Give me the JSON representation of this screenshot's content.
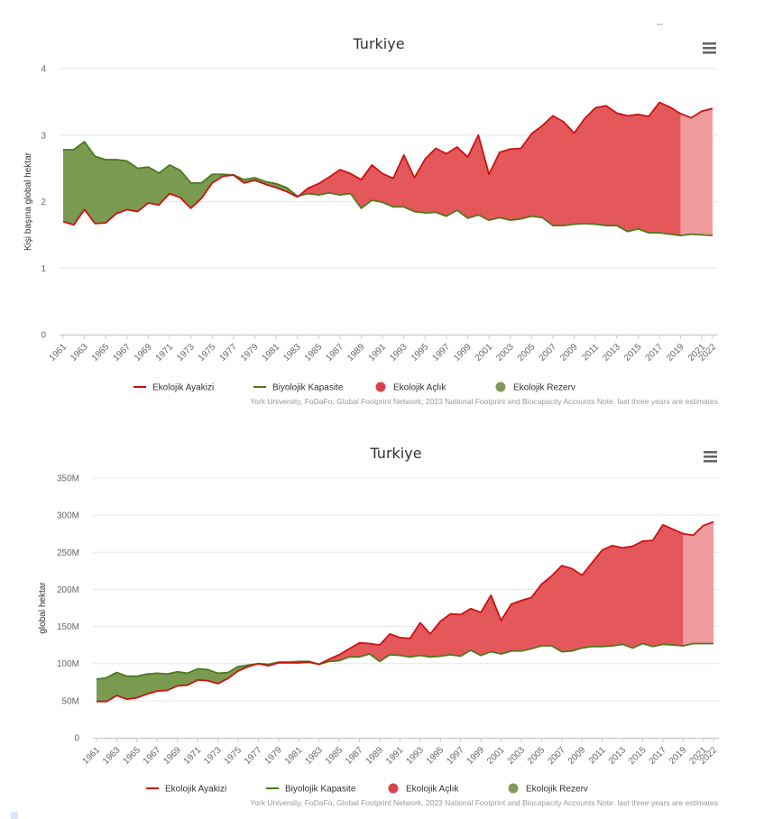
{
  "corner_mark": "--",
  "colors": {
    "footprint_line": "#cc1111",
    "biocap_line": "#4d7a1f",
    "deficit_fill": "#e4575b",
    "deficit_fill_estimate": "#ef9b9d",
    "reserve_fill": "#7a9b4f",
    "legend_deficit_dot": "#d8424b",
    "legend_reserve_dot": "#86995a"
  },
  "chart_data": [
    {
      "type": "area",
      "title": "Turkiye",
      "xlabel": "",
      "ylabel": "Kişi başına global hektar",
      "ylim": [
        0,
        4
      ],
      "yticks": [
        "0",
        "1",
        "2",
        "3",
        "4"
      ],
      "ytick_values": [
        0,
        1,
        2,
        3,
        4
      ],
      "xticks": [
        "1961",
        "1963",
        "1965",
        "1967",
        "1969",
        "1971",
        "1973",
        "1975",
        "1977",
        "1979",
        "1981",
        "1983",
        "1985",
        "1987",
        "1989",
        "1991",
        "1993",
        "1995",
        "1997",
        "1999",
        "2001",
        "2003",
        "2005",
        "2007",
        "2009",
        "2011",
        "2013",
        "2015",
        "2017",
        "2019",
        "2021",
        "2022"
      ],
      "estimate_from_year": 2020,
      "legend": [
        "Ekolojik Ayakizi",
        "Biyolojik Kapasite",
        "Ekolojik Açlık",
        "Ekolojik Rezerv"
      ],
      "credits": "York University, FoDaFo, Global Footprint Network, 2023 National Footprint and Biocapacity Accounts Note: last three years are estimates",
      "x": [
        1961,
        1962,
        1963,
        1964,
        1965,
        1966,
        1967,
        1968,
        1969,
        1970,
        1971,
        1972,
        1973,
        1974,
        1975,
        1976,
        1977,
        1978,
        1979,
        1980,
        1981,
        1982,
        1983,
        1984,
        1985,
        1986,
        1987,
        1988,
        1989,
        1990,
        1991,
        1992,
        1993,
        1994,
        1995,
        1996,
        1997,
        1998,
        1999,
        2000,
        2001,
        2002,
        2003,
        2004,
        2005,
        2006,
        2007,
        2008,
        2009,
        2010,
        2011,
        2012,
        2013,
        2014,
        2015,
        2016,
        2017,
        2018,
        2019,
        2020,
        2021,
        2022
      ],
      "series": [
        {
          "name": "Ekolojik Ayakizi",
          "values": [
            1.7,
            1.65,
            1.88,
            1.67,
            1.68,
            1.82,
            1.88,
            1.85,
            1.98,
            1.95,
            2.12,
            2.06,
            1.9,
            2.05,
            2.28,
            2.38,
            2.4,
            2.28,
            2.32,
            2.26,
            2.21,
            2.15,
            2.07,
            2.2,
            2.27,
            2.37,
            2.48,
            2.42,
            2.33,
            2.55,
            2.42,
            2.35,
            2.7,
            2.36,
            2.64,
            2.8,
            2.72,
            2.82,
            2.67,
            3.0,
            2.41,
            2.74,
            2.79,
            2.8,
            3.02,
            3.14,
            3.29,
            3.2,
            3.03,
            3.25,
            3.41,
            3.44,
            3.33,
            3.29,
            3.31,
            3.28,
            3.49,
            3.42,
            3.32,
            3.26,
            3.36,
            3.4
          ]
        },
        {
          "name": "Biyolojik Kapasite",
          "values": [
            2.78,
            2.78,
            2.9,
            2.68,
            2.63,
            2.63,
            2.61,
            2.5,
            2.52,
            2.43,
            2.55,
            2.47,
            2.28,
            2.28,
            2.41,
            2.41,
            2.4,
            2.33,
            2.36,
            2.3,
            2.27,
            2.21,
            2.08,
            2.12,
            2.1,
            2.13,
            2.1,
            2.12,
            1.9,
            2.02,
            1.99,
            1.92,
            1.92,
            1.85,
            1.83,
            1.84,
            1.78,
            1.87,
            1.75,
            1.8,
            1.72,
            1.76,
            1.72,
            1.74,
            1.78,
            1.76,
            1.64,
            1.64,
            1.66,
            1.67,
            1.66,
            1.64,
            1.64,
            1.55,
            1.59,
            1.53,
            1.53,
            1.51,
            1.49,
            1.51,
            1.5,
            1.49
          ]
        }
      ]
    },
    {
      "type": "area",
      "title": "Turkiye",
      "xlabel": "",
      "ylabel": "global hektar",
      "ylim": [
        0,
        350000000
      ],
      "yticks": [
        "0",
        "50M",
        "100M",
        "150M",
        "200M",
        "250M",
        "300M",
        "350M"
      ],
      "ytick_values": [
        0,
        50000000,
        100000000,
        150000000,
        200000000,
        250000000,
        300000000,
        350000000
      ],
      "xticks": [
        "1961",
        "1963",
        "1965",
        "1967",
        "1969",
        "1971",
        "1973",
        "1975",
        "1977",
        "1979",
        "1981",
        "1983",
        "1985",
        "1987",
        "1989",
        "1991",
        "1993",
        "1995",
        "1997",
        "1999",
        "2001",
        "2003",
        "2005",
        "2007",
        "2009",
        "2011",
        "2013",
        "2015",
        "2017",
        "2019",
        "2021",
        "2022"
      ],
      "estimate_from_year": 2020,
      "legend": [
        "Ekolojik Ayakizi",
        "Biyolojik Kapasite",
        "Ekolojik Açlık",
        "Ekolojik Rezerv"
      ],
      "credits": "York University, FoDaFo, Global Footprint Network, 2023 National Footprint and Biocapacity Accounts Note: last three years are estimates",
      "x": [
        1961,
        1962,
        1963,
        1964,
        1965,
        1966,
        1967,
        1968,
        1969,
        1970,
        1971,
        1972,
        1973,
        1974,
        1975,
        1976,
        1977,
        1978,
        1979,
        1980,
        1981,
        1982,
        1983,
        1984,
        1985,
        1986,
        1987,
        1988,
        1989,
        1990,
        1991,
        1992,
        1993,
        1994,
        1995,
        1996,
        1997,
        1998,
        1999,
        2000,
        2001,
        2002,
        2003,
        2004,
        2005,
        2006,
        2007,
        2008,
        2009,
        2010,
        2011,
        2012,
        2013,
        2014,
        2015,
        2016,
        2017,
        2018,
        2019,
        2020,
        2021,
        2022
      ],
      "series": [
        {
          "name": "Ekolojik Ayakizi",
          "values": [
            49,
            49,
            57,
            52,
            54,
            59,
            63,
            64,
            70,
            71,
            78,
            77,
            73,
            80,
            90,
            96,
            100,
            97,
            101,
            101,
            101,
            102,
            99,
            106,
            112,
            120,
            128,
            127,
            125,
            140,
            135,
            134,
            155,
            140,
            157,
            167,
            166,
            174,
            169,
            192,
            158,
            180,
            185,
            189,
            207,
            218,
            232,
            228,
            219,
            236,
            253,
            259,
            256,
            258,
            265,
            266,
            287,
            281,
            275,
            273,
            286,
            291
          ]
        },
        {
          "name": "Biyolojik Kapasite",
          "values": [
            79,
            81,
            88,
            83,
            83,
            86,
            87,
            86,
            89,
            87,
            93,
            92,
            87,
            88,
            96,
            98,
            100,
            99,
            102,
            102,
            103,
            103,
            99,
            103,
            104,
            109,
            109,
            113,
            103,
            112,
            111,
            109,
            111,
            109,
            110,
            112,
            110,
            118,
            111,
            116,
            113,
            117,
            117,
            120,
            124,
            124,
            116,
            117,
            121,
            123,
            123,
            124,
            126,
            121,
            127,
            123,
            126,
            125,
            124,
            127,
            127,
            127
          ]
        }
      ]
    }
  ]
}
